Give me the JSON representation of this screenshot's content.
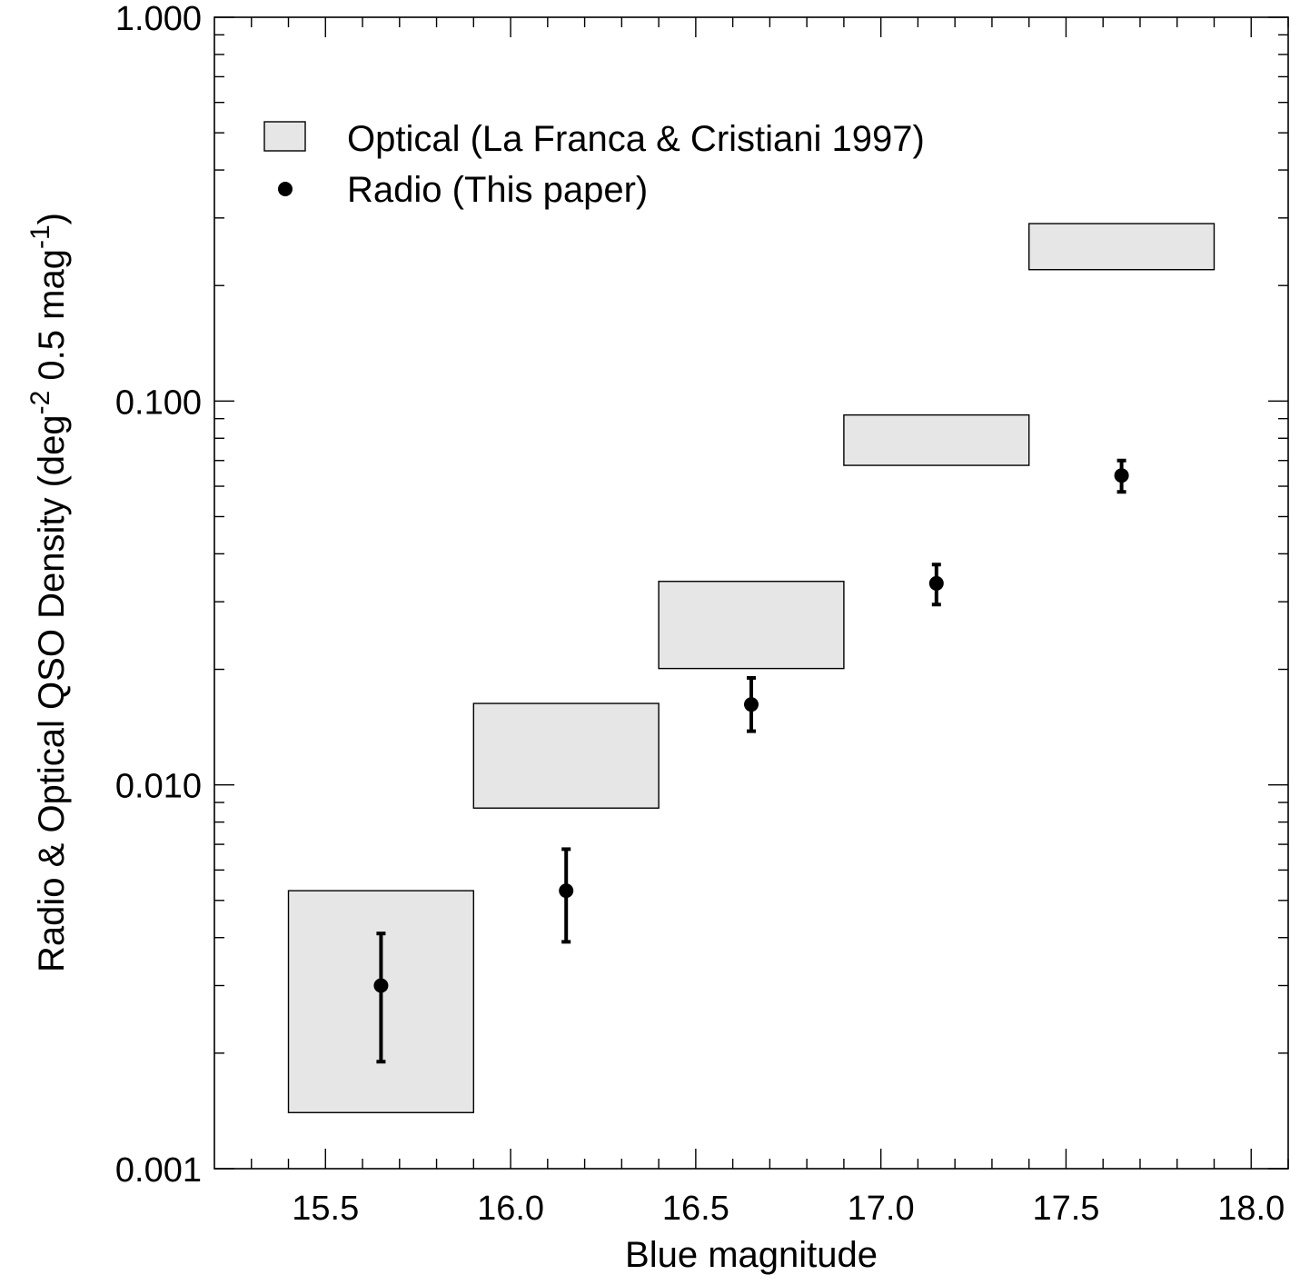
{
  "chart_data": {
    "type": "scatter",
    "xlabel": "Blue magnitude",
    "ylabel_main": "Radio & Optical QSO Density (deg",
    "ylabel_sup1": "-2",
    "ylabel_mid": " 0.5 mag",
    "ylabel_sup2": "-1",
    "ylabel_end": ")",
    "xlim": [
      15.2,
      18.1
    ],
    "ylim": [
      0.001,
      1.0
    ],
    "yscale": "log",
    "xticks": [
      "15.5",
      "16.0",
      "16.5",
      "17.0",
      "17.5",
      "18.0"
    ],
    "yticks": [
      "0.001",
      "0.010",
      "0.100",
      "1.000"
    ],
    "legend": {
      "position": "top-left",
      "optical_label": "Optical (La Franca & Cristiani 1997)",
      "radio_label": "Radio (This paper)"
    },
    "optical_boxes": [
      {
        "x_min": 15.4,
        "x_max": 15.9,
        "y_min": 0.0014,
        "y_max": 0.0053
      },
      {
        "x_min": 15.9,
        "x_max": 16.4,
        "y_min": 0.0087,
        "y_max": 0.0163
      },
      {
        "x_min": 16.4,
        "x_max": 16.9,
        "y_min": 0.0201,
        "y_max": 0.0339
      },
      {
        "x_min": 16.9,
        "x_max": 17.4,
        "y_min": 0.068,
        "y_max": 0.092
      },
      {
        "x_min": 17.4,
        "x_max": 17.9,
        "y_min": 0.22,
        "y_max": 0.29
      }
    ],
    "radio_points": [
      {
        "x": 15.65,
        "y": 0.003,
        "y_lo": 0.0019,
        "y_hi": 0.0041
      },
      {
        "x": 16.15,
        "y": 0.0053,
        "y_lo": 0.0039,
        "y_hi": 0.0068
      },
      {
        "x": 16.65,
        "y": 0.0162,
        "y_lo": 0.0138,
        "y_hi": 0.019
      },
      {
        "x": 17.15,
        "y": 0.0335,
        "y_lo": 0.0295,
        "y_hi": 0.0375
      },
      {
        "x": 17.65,
        "y": 0.064,
        "y_lo": 0.058,
        "y_hi": 0.07
      }
    ]
  }
}
